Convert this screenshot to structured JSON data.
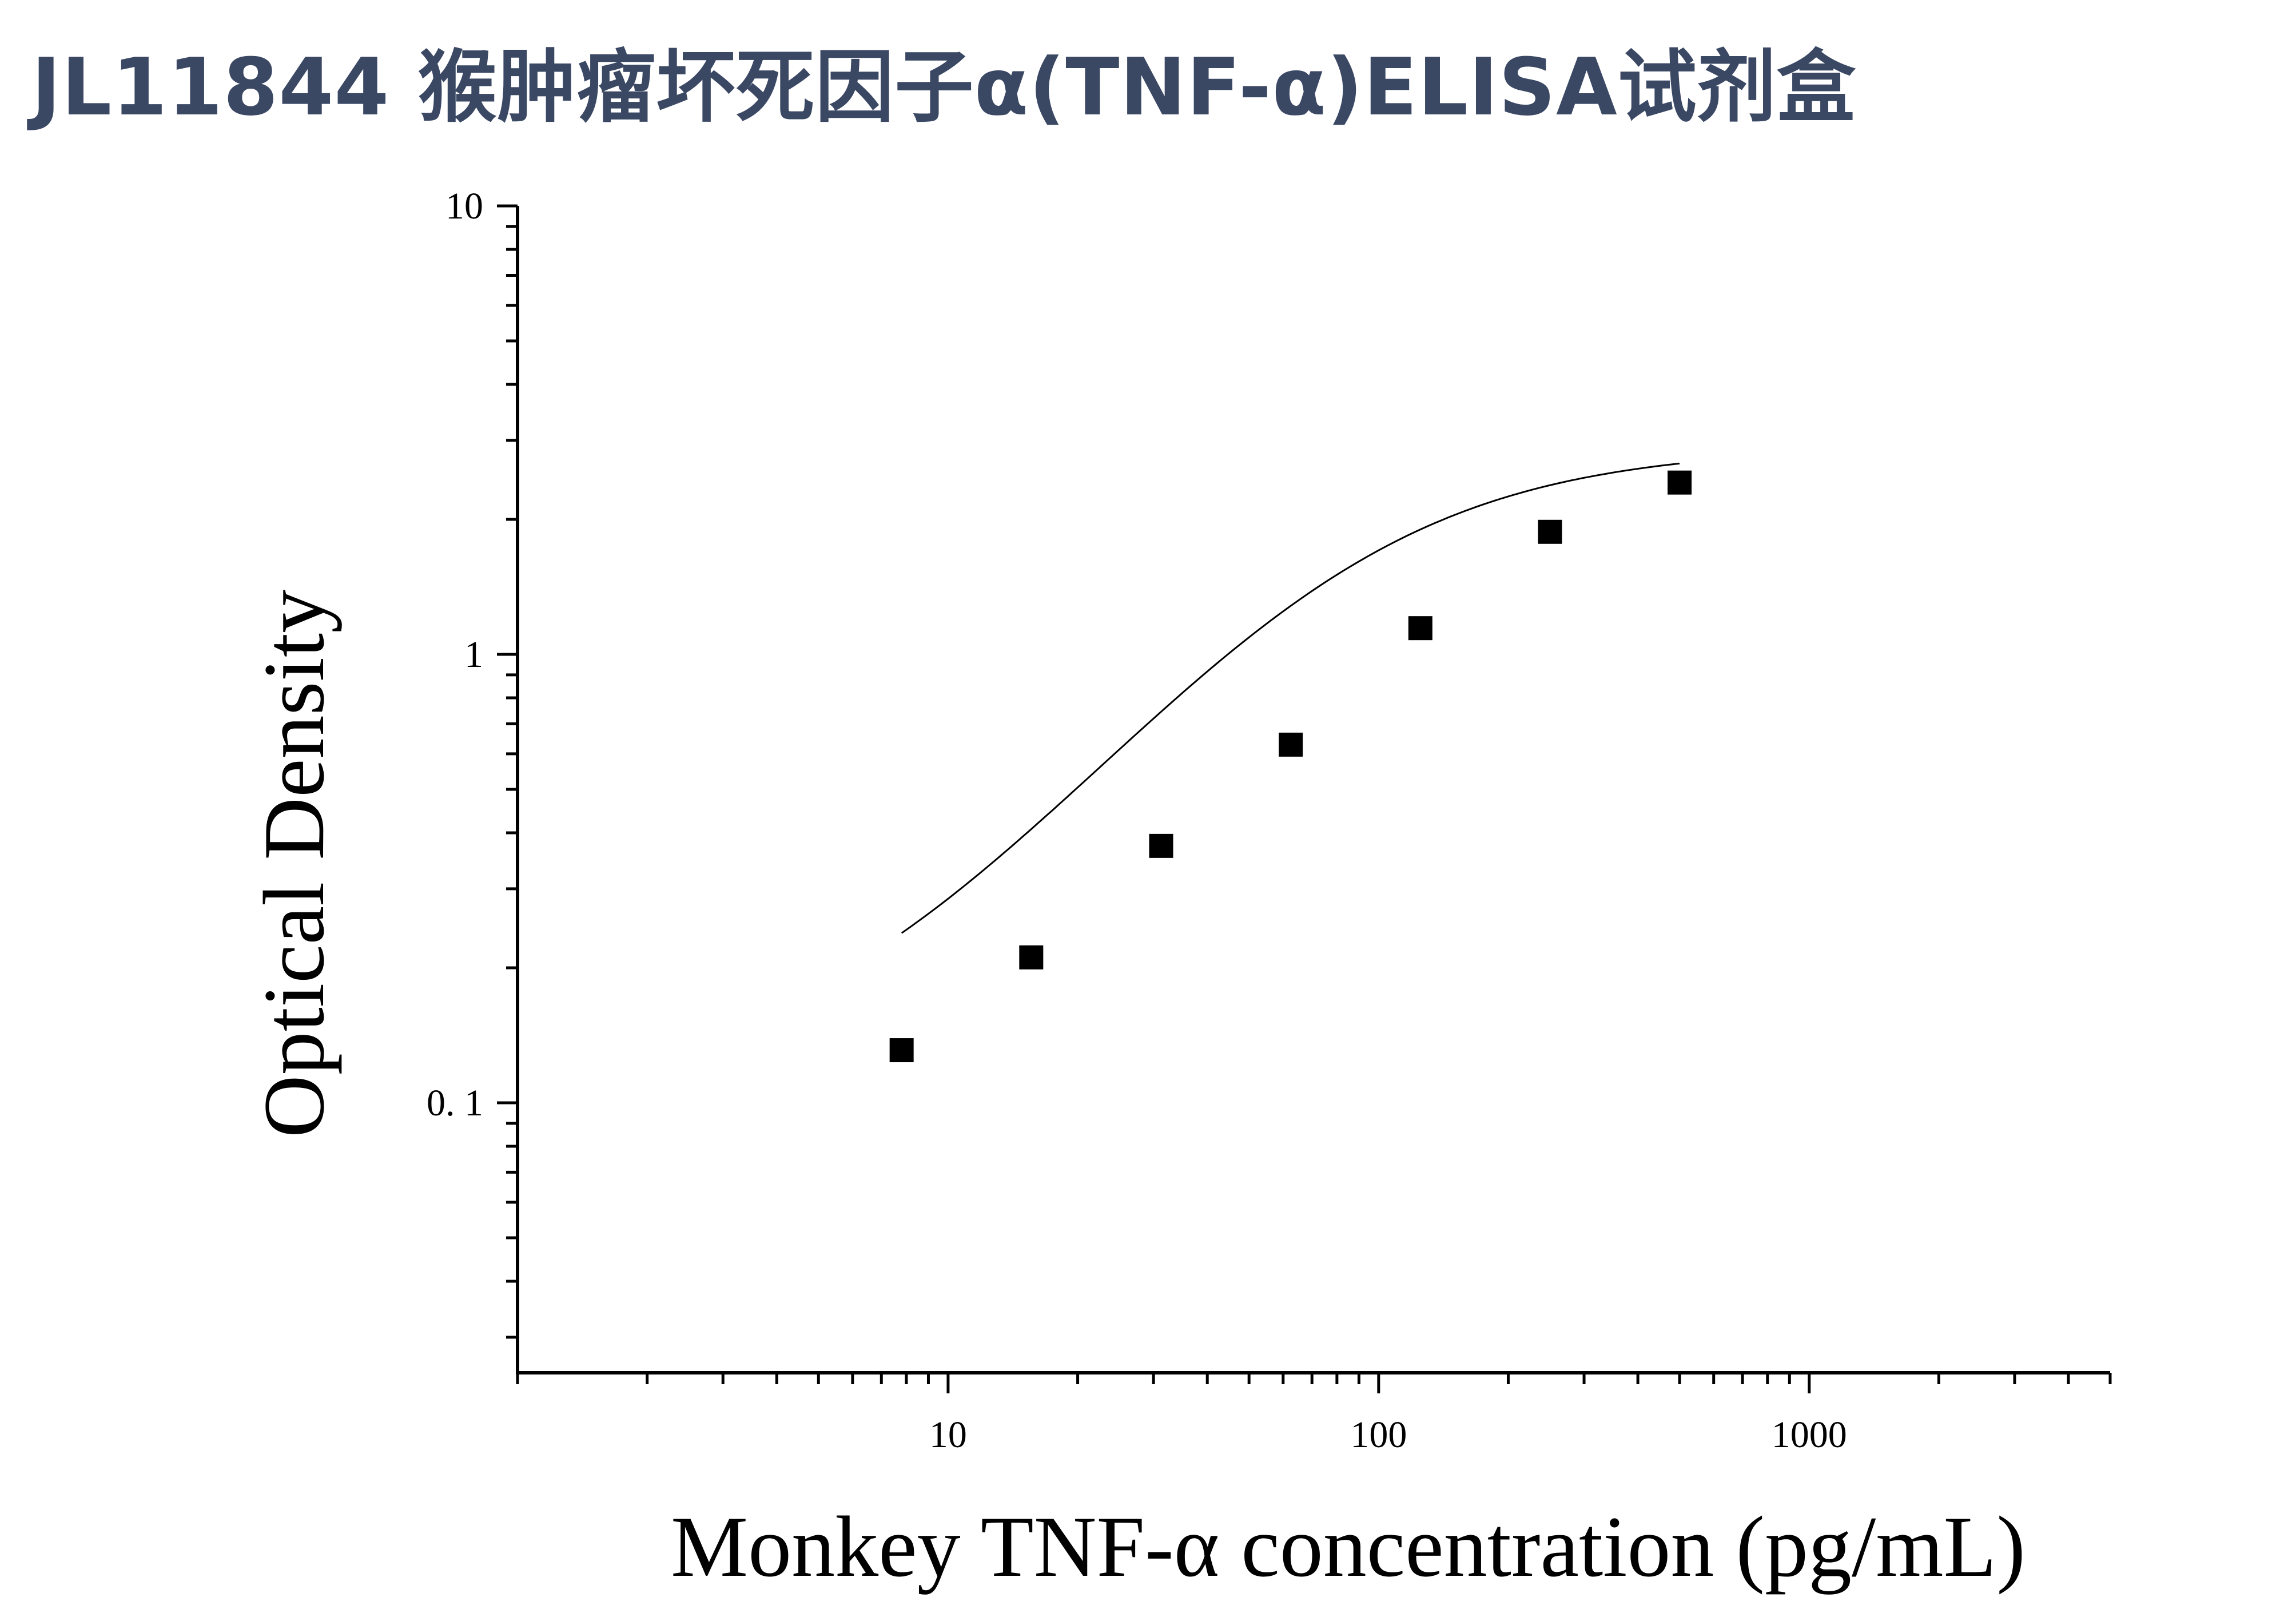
{
  "page": {
    "title": "JL11844 猴肿瘤坏死因子α(TNF-α)ELISA试剂盒"
  },
  "chart_data": {
    "type": "scatter",
    "title": "JL11844 猴肿瘤坏死因子α(TNF-α)ELISA试剂盒",
    "xlabel": "Monkey TNF-α concentration (pg/mL)",
    "ylabel": "Optical Density",
    "xscale": "log",
    "yscale": "log",
    "xlim": [
      1,
      5000
    ],
    "ylim": [
      0.025,
      10
    ],
    "x_ticks": [
      {
        "value": 10,
        "label": "10"
      },
      {
        "value": 100,
        "label": "100"
      },
      {
        "value": 1000,
        "label": "1000"
      }
    ],
    "y_ticks": [
      {
        "value": 0.1,
        "label": "0. 1"
      },
      {
        "value": 1,
        "label": "1"
      },
      {
        "value": 10,
        "label": "10"
      }
    ],
    "grid": false,
    "legend": "none",
    "marker": "square",
    "color": "#000000",
    "series": [
      {
        "x": [
          7.8,
          15.6,
          31.25,
          62.5,
          125,
          250,
          500
        ],
        "y": [
          0.131,
          0.211,
          0.374,
          0.629,
          1.144,
          1.876,
          2.416
        ]
      }
    ],
    "fit": {
      "type": "4PL",
      "bottom": 0.11,
      "top": 2.9,
      "ec50": 80,
      "hill": 1.3,
      "x_range": [
        7.8,
        500
      ]
    }
  }
}
